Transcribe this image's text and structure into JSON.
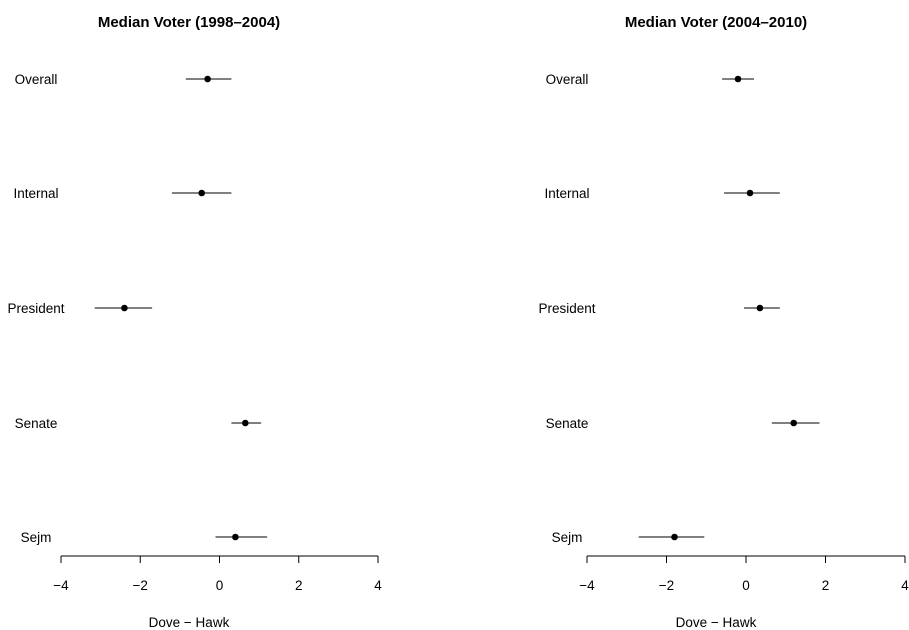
{
  "chart_data": [
    {
      "type": "scatter",
      "title": "Median Voter (1998–2004)",
      "xlabel": "Dove − Hawk",
      "ylabel": "",
      "xlim": [
        -4,
        4
      ],
      "x_ticks": [
        -4,
        -2,
        0,
        2,
        4
      ],
      "x_tick_labels": [
        "−4",
        "−2",
        "0",
        "2",
        "4"
      ],
      "categories": [
        "Overall",
        "Internal",
        "President",
        "Senate",
        "Sejm"
      ],
      "estimates": [
        -0.3,
        -0.45,
        -2.4,
        0.65,
        0.4
      ],
      "lower": [
        -0.85,
        -1.2,
        -3.15,
        0.3,
        -0.1
      ],
      "upper": [
        0.3,
        0.3,
        -1.7,
        1.05,
        1.2
      ],
      "grid": false
    },
    {
      "type": "scatter",
      "title": "Median Voter (2004–2010)",
      "xlabel": "Dove − Hawk",
      "ylabel": "",
      "xlim": [
        -4,
        4
      ],
      "x_ticks": [
        -4,
        -2,
        0,
        2,
        4
      ],
      "x_tick_labels": [
        "−4",
        "−2",
        "0",
        "2",
        "4"
      ],
      "categories": [
        "Overall",
        "Internal",
        "President",
        "Senate",
        "Sejm"
      ],
      "estimates": [
        -0.2,
        0.1,
        0.35,
        1.2,
        -1.8
      ],
      "lower": [
        -0.6,
        -0.55,
        -0.05,
        0.65,
        -2.7
      ],
      "upper": [
        0.2,
        0.85,
        0.85,
        1.85,
        -1.05
      ],
      "grid": false
    }
  ]
}
